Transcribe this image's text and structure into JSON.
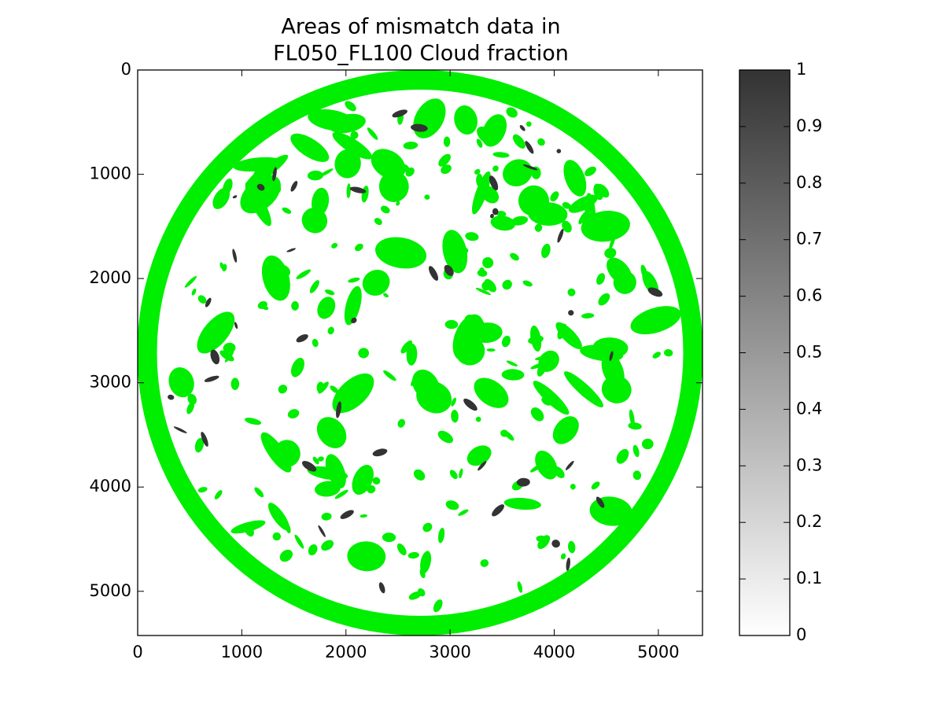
{
  "chart_data": {
    "type": "image",
    "title": [
      "Areas of mismatch data in",
      "FL050_FL100 Cloud fraction"
    ],
    "xlim": [
      0,
      5424
    ],
    "ylim": [
      5424,
      0
    ],
    "xticks": [
      0,
      1000,
      2000,
      3000,
      4000,
      5000
    ],
    "yticks": [
      0,
      1000,
      2000,
      3000,
      4000,
      5000
    ],
    "mismatch_color": "#00ee00",
    "colorbar": {
      "clim": [
        0,
        1
      ],
      "colors": [
        "#ffffff",
        "#333333"
      ],
      "ticks": [
        0,
        0.1,
        0.2,
        0.3,
        0.4,
        0.5,
        0.6,
        0.7,
        0.8,
        0.9,
        1
      ]
    }
  }
}
